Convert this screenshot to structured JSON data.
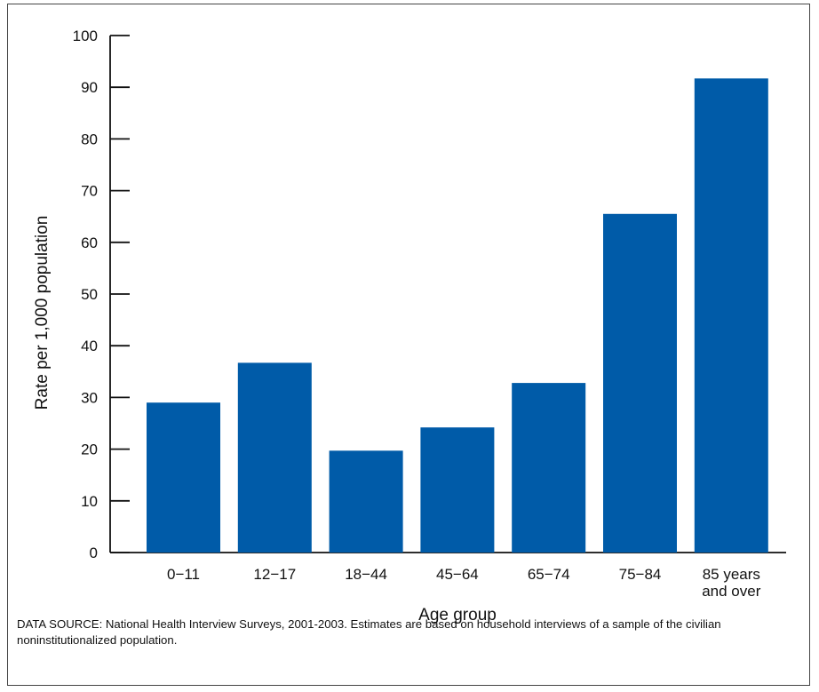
{
  "chart_data": {
    "type": "bar",
    "categories": [
      "0-11",
      "12-17",
      "18-44",
      "45-64",
      "65-74",
      "75-84",
      "85 years and over"
    ],
    "category_lines": [
      [
        "0−11"
      ],
      [
        "12−17"
      ],
      [
        "18−44"
      ],
      [
        "45−64"
      ],
      [
        "65−74"
      ],
      [
        "75−84"
      ],
      [
        "85 years",
        "and over"
      ]
    ],
    "values": [
      29,
      36.7,
      19.7,
      24.2,
      32.8,
      65.5,
      91.7
    ],
    "xlabel": "Age group",
    "ylabel": "Rate per 1,000 population",
    "ylim": [
      0,
      100
    ],
    "yticks": [
      0,
      10,
      20,
      30,
      40,
      50,
      60,
      70,
      80,
      90,
      100
    ],
    "bar_color": "#005ba8",
    "grid": false,
    "legend": "none"
  },
  "footer": {
    "source": "DATA SOURCE: National Health Interview Surveys, 2001-2003. Estimates are based on household interviews of a sample of the civilian noninstitutionalized population."
  }
}
